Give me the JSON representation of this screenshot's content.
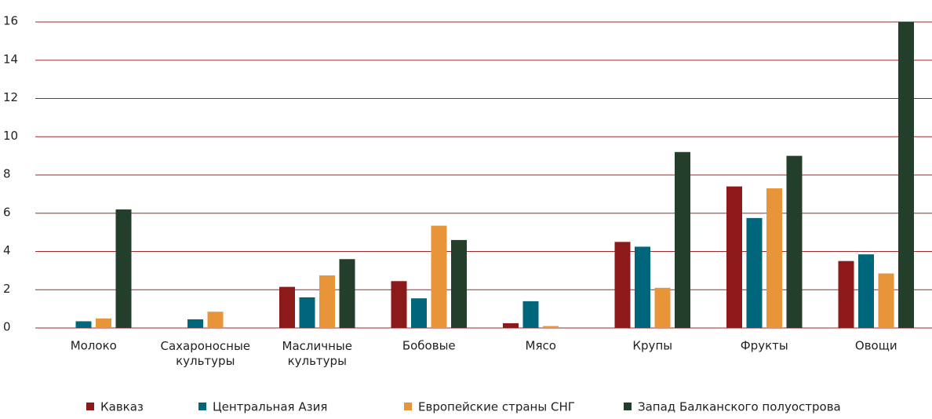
{
  "chart_data": {
    "type": "bar",
    "categories": [
      "Молоко",
      "Сахароносные\nкультуры",
      "Масличные\nкультуры",
      "Бобовые",
      "Мясо",
      "Крупы",
      "Фрукты",
      "Овощи"
    ],
    "series": [
      {
        "name": "Кавказ",
        "color": "#8c1a1a",
        "values": [
          null,
          null,
          2.15,
          2.45,
          0.25,
          4.5,
          7.4,
          3.5
        ]
      },
      {
        "name": "Центральная Азия",
        "color": "#00667c",
        "values": [
          0.35,
          0.45,
          1.6,
          1.55,
          1.4,
          4.25,
          5.75,
          3.85
        ]
      },
      {
        "name": "Европейские страны СНГ",
        "color": "#e8953a",
        "values": [
          0.5,
          0.85,
          2.75,
          5.35,
          0.1,
          2.1,
          7.3,
          2.85
        ]
      },
      {
        "name": "Запад Балканского полуострова",
        "color": "#233f2c",
        "values": [
          6.2,
          null,
          3.6,
          4.6,
          null,
          9.2,
          9.0,
          16
        ]
      }
    ],
    "ylim": [
      0,
      16
    ],
    "yticks": [
      0,
      2,
      4,
      6,
      8,
      10,
      12,
      14,
      16
    ],
    "grid": true,
    "grid_color": "#9b2b2b",
    "legend": "bottom"
  }
}
